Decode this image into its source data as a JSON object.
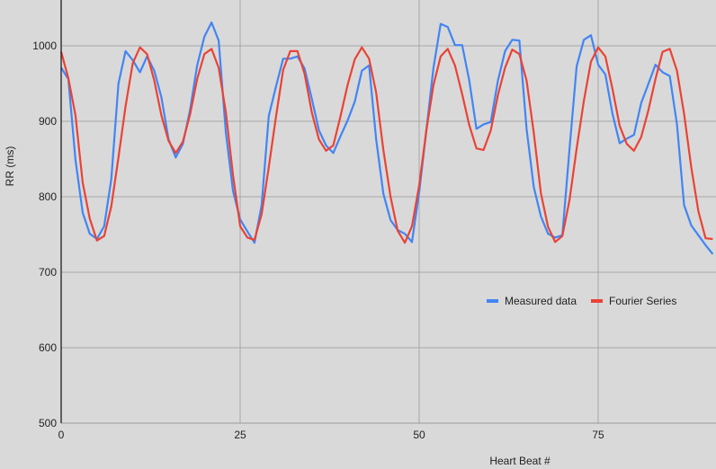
{
  "chart_data": {
    "type": "line",
    "title": "",
    "xlabel": "Heart Beat #",
    "ylabel": "RR (ms)",
    "xlim": [
      0,
      91.5
    ],
    "ylim": [
      500,
      1060
    ],
    "x_ticks": [
      0,
      25,
      50,
      75
    ],
    "y_ticks": [
      500,
      600,
      700,
      800,
      900,
      1000
    ],
    "grid": true,
    "legend_position": "right-inside",
    "series": [
      {
        "name": "Measured data",
        "color": "#4285f4",
        "values": [
          971,
          956,
          849,
          779,
          751,
          744,
          761,
          823,
          950,
          993,
          981,
          965,
          986,
          967,
          932,
          876,
          852,
          870,
          915,
          974,
          1012,
          1031,
          1007,
          885,
          808,
          770,
          754,
          739,
          789,
          907,
          946,
          983,
          983,
          986,
          970,
          930,
          888,
          868,
          858,
          880,
          901,
          926,
          967,
          974,
          876,
          804,
          769,
          756,
          751,
          740,
          806,
          888,
          971,
          1029,
          1025,
          1001,
          1001,
          954,
          890,
          896,
          899,
          954,
          993,
          1008,
          1007,
          890,
          813,
          774,
          751,
          746,
          749,
          864,
          973,
          1008,
          1014,
          975,
          962,
          910,
          871,
          877,
          882,
          924,
          949,
          975,
          965,
          960,
          896,
          789,
          762,
          749,
          736,
          724
        ]
      },
      {
        "name": "Fourier Series",
        "color": "#ea4335",
        "values": [
          992,
          957,
          908,
          819,
          771,
          742,
          748,
          787,
          852,
          920,
          977,
          998,
          989,
          954,
          908,
          874,
          858,
          873,
          909,
          956,
          989,
          996,
          971,
          912,
          829,
          761,
          746,
          743,
          777,
          839,
          906,
          968,
          993,
          993,
          963,
          912,
          876,
          861,
          868,
          906,
          948,
          982,
          998,
          983,
          938,
          862,
          800,
          755,
          739,
          761,
          815,
          888,
          948,
          986,
          996,
          974,
          936,
          895,
          864,
          862,
          888,
          935,
          971,
          995,
          989,
          954,
          885,
          805,
          760,
          740,
          748,
          796,
          864,
          927,
          979,
          998,
          986,
          943,
          894,
          870,
          861,
          879,
          914,
          956,
          992,
          996,
          967,
          910,
          839,
          781,
          745,
          744
        ]
      }
    ]
  },
  "legend": {
    "items": [
      {
        "label": "Measured data",
        "color": "#4285f4"
      },
      {
        "label": "Fourier Series",
        "color": "#ea4335"
      }
    ]
  },
  "axes": {
    "x_title": "Heart Beat #",
    "y_title": "RR (ms)",
    "x_tick_labels": [
      "0",
      "25",
      "50",
      "75"
    ],
    "y_tick_labels": [
      "500",
      "600",
      "700",
      "800",
      "900",
      "1000"
    ]
  }
}
